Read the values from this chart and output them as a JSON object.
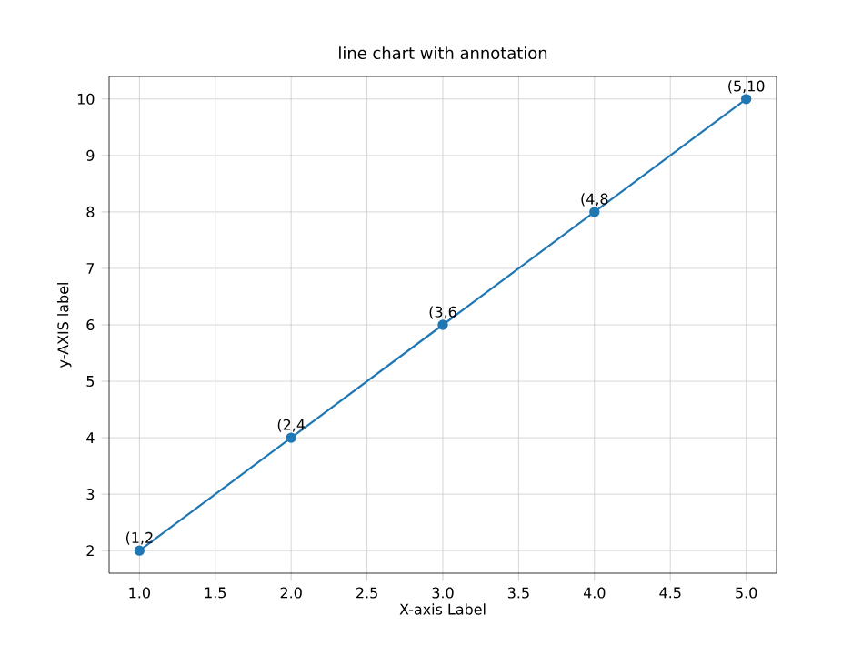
{
  "chart_data": {
    "type": "line",
    "title": "line chart with annotation",
    "xlabel": "X-axis Label",
    "ylabel": "y-AXIS label",
    "x": [
      1,
      2,
      3,
      4,
      5
    ],
    "series": [
      {
        "color": "#1f77b4",
        "values": [
          2,
          4,
          6,
          8,
          10
        ]
      }
    ],
    "xlim": [
      0.8,
      5.2
    ],
    "ylim": [
      1.6,
      10.4
    ],
    "xticks": [
      {
        "value": 1,
        "label": "1.0"
      },
      {
        "value": 1.5,
        "label": "1.5"
      },
      {
        "value": 2,
        "label": "2.0"
      },
      {
        "value": 2.5,
        "label": "2.5"
      },
      {
        "value": 3,
        "label": "3.0"
      },
      {
        "value": 3.5,
        "label": "3.5"
      },
      {
        "value": 4,
        "label": "4.0"
      },
      {
        "value": 4.5,
        "label": "4.5"
      },
      {
        "value": 5,
        "label": "5.0"
      }
    ],
    "yticks": [
      2,
      3,
      4,
      5,
      6,
      7,
      8,
      9,
      10
    ],
    "grid": true,
    "marker": "circle",
    "line_style": "solid",
    "annotations": [
      {
        "text": "(1,2",
        "x": 1,
        "y": 2
      },
      {
        "text": "(2,4",
        "x": 2,
        "y": 4
      },
      {
        "text": "(3,6",
        "x": 3,
        "y": 6
      },
      {
        "text": "(4,8",
        "x": 4,
        "y": 8
      },
      {
        "text": "(5,10",
        "x": 5,
        "y": 10
      }
    ]
  }
}
